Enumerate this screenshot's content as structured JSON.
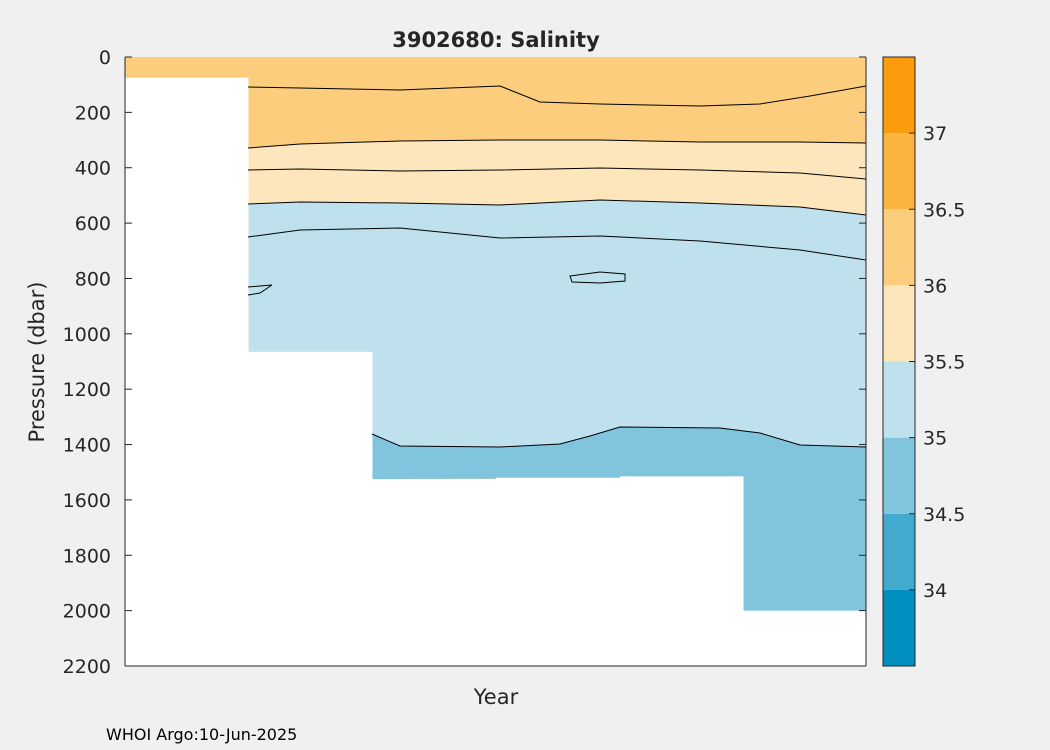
{
  "chart_data": {
    "type": "heatmap",
    "title": "3902680:  Salinity",
    "xlabel": "Year",
    "ylabel": "Pressure (dbar)",
    "ylim": [
      0,
      2200
    ],
    "y_reversed": true,
    "y_ticks": [
      "0",
      "200",
      "400",
      "600",
      "800",
      "1000",
      "1200",
      "1400",
      "1600",
      "1800",
      "2000",
      "2200"
    ],
    "x_ticks": [],
    "grid": false,
    "colorbar": {
      "placement": "right",
      "range": [
        33.5,
        37.5
      ],
      "tick_labels": [
        "34",
        "34.5",
        "35",
        "35.5",
        "36",
        "36.5",
        "37"
      ],
      "levels": [
        {
          "from": 33.5,
          "to": 34.0,
          "color": "#0090bf"
        },
        {
          "from": 34.0,
          "to": 34.5,
          "color": "#42a9cf"
        },
        {
          "from": 34.5,
          "to": 35.0,
          "color": "#80c4de"
        },
        {
          "from": 35.0,
          "to": 35.5,
          "color": "#bfe0ed"
        },
        {
          "from": 35.5,
          "to": 36.0,
          "color": "#fde6bb"
        },
        {
          "from": 36.0,
          "to": 36.5,
          "color": "#fccd7d"
        },
        {
          "from": 36.5,
          "to": 37.0,
          "color": "#fcb440"
        },
        {
          "from": 37.0,
          "to": 37.5,
          "color": "#fc9c0c"
        }
      ]
    },
    "profile_max_depth_dbar": [
      {
        "segment": 1,
        "max_depth": 75
      },
      {
        "segment": 2,
        "max_depth": 1065
      },
      {
        "segment": 3,
        "max_depth": 1525
      },
      {
        "segment": 4,
        "max_depth": 1520
      },
      {
        "segment": 5,
        "max_depth": 1515
      },
      {
        "segment": 6,
        "max_depth": 2000
      }
    ],
    "salinity_bands_by_depth_dbar": [
      {
        "range": "36 - 36.5",
        "top": 0,
        "bottom": 320
      },
      {
        "range": "35.5 - 36",
        "top": 320,
        "bottom": 550
      },
      {
        "range": "35 - 35.5",
        "top": 550,
        "bottom": 1400
      },
      {
        "range": "34.5 - 35",
        "top": 1400,
        "bottom": 2000
      }
    ]
  },
  "footer": "WHOI Argo:10-Jun-2025"
}
